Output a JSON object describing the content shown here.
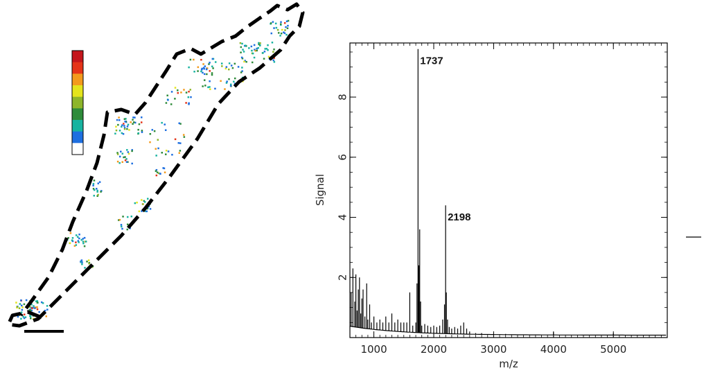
{
  "colorbar": {
    "colors": [
      "#ffffff",
      "#1e6fe0",
      "#17b3a0",
      "#2e8b3a",
      "#8db52a",
      "#e4e41c",
      "#f39a1c",
      "#e53418",
      "#c4161c"
    ]
  },
  "tissue_image": {
    "outline": "dashed",
    "outline_color": "#000000",
    "spot_colors": [
      "#1e6fe0",
      "#17b3a0",
      "#2e8b3a",
      "#8db52a",
      "#e4e41c",
      "#f39a1c",
      "#e53418"
    ]
  },
  "chart_data": {
    "type": "line",
    "xlabel": "m/z",
    "ylabel": "Signal",
    "xlim": [
      600,
      5900
    ],
    "ylim": [
      0,
      9.8
    ],
    "x_ticks": [
      1000,
      2000,
      3000,
      4000,
      5000
    ],
    "y_ticks": [
      2,
      4,
      6,
      8
    ],
    "x_tick_labels": [
      "1000",
      "2000",
      "3000",
      "4000",
      "5000"
    ],
    "y_tick_labels": [
      "2",
      "4",
      "6",
      "8"
    ],
    "annotations": [
      {
        "x": 1737,
        "y": 9.6,
        "text": "1737"
      },
      {
        "x": 2198,
        "y": 4.4,
        "text": "2198"
      }
    ],
    "series": [
      {
        "x": [
          620,
          650,
          680,
          700,
          720,
          740,
          760,
          780,
          800,
          820,
          850,
          880,
          900,
          930,
          960,
          1000,
          1050,
          1100,
          1150,
          1200,
          1250,
          1300,
          1350,
          1400,
          1450,
          1500,
          1550,
          1600,
          1650,
          1700,
          1720,
          1737,
          1750,
          1765,
          1780,
          1800,
          1850,
          1900,
          1950,
          2000,
          2050,
          2100,
          2150,
          2180,
          2198,
          2210,
          2230,
          2260,
          2300,
          2350,
          2400,
          2450,
          2500,
          2550,
          2600,
          2700,
          2800,
          3000,
          3200,
          3500,
          3800,
          4000,
          4200,
          4500,
          4800,
          5000,
          5200,
          5500,
          5900
        ],
        "y": [
          1.5,
          2.3,
          1.2,
          2.1,
          0.9,
          1.6,
          2.0,
          0.8,
          1.3,
          1.6,
          0.7,
          1.8,
          0.6,
          1.1,
          0.5,
          0.7,
          0.5,
          0.6,
          0.5,
          0.7,
          0.5,
          0.8,
          0.5,
          0.6,
          0.5,
          0.5,
          0.5,
          1.5,
          0.4,
          0.5,
          1.8,
          9.6,
          2.4,
          3.6,
          1.2,
          0.4,
          0.45,
          0.4,
          0.35,
          0.4,
          0.35,
          0.4,
          0.6,
          1.1,
          4.4,
          1.5,
          0.6,
          0.35,
          0.3,
          0.35,
          0.3,
          0.4,
          0.5,
          0.3,
          0.2,
          0.15,
          0.15,
          0.12,
          0.12,
          0.1,
          0.1,
          0.18,
          0.1,
          0.1,
          0.1,
          0.14,
          0.08,
          0.08,
          0.08
        ]
      }
    ],
    "grid": false,
    "legend": "right"
  }
}
